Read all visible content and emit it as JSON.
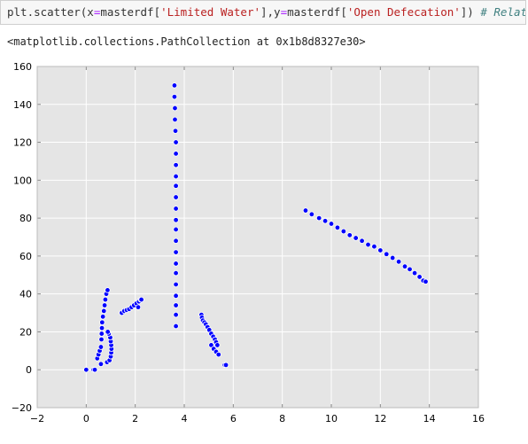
{
  "code_cell": {
    "part_1": "plt.scatter(x",
    "eq_1": "=",
    "part_2": "masterdf[",
    "str_1": "'Limited Water'",
    "part_3": "],y",
    "eq_2": "=",
    "part_4": "masterdf[",
    "str_2": "'Open Defecation'",
    "part_5": "]) ",
    "comment": "# Relation o"
  },
  "output": {
    "text": "<matplotlib.collections.PathCollection at 0x1b8d8327e30>"
  },
  "colors": {
    "plot_background": "#e5e5e5",
    "grid": "#ffffff",
    "marker_fill": "#0000ff",
    "marker_edge": "#ffffff"
  },
  "chart_data": {
    "type": "scatter",
    "title": "",
    "xlabel": "",
    "ylabel": "",
    "xlim": [
      -2,
      16
    ],
    "ylim": [
      -20,
      160
    ],
    "xticks": [
      -2,
      0,
      2,
      4,
      6,
      8,
      10,
      12,
      14,
      16
    ],
    "yticks": [
      -20,
      0,
      20,
      40,
      60,
      80,
      100,
      120,
      140,
      160
    ],
    "grid": true,
    "series": [
      {
        "points": [
          [
            0.0,
            0
          ],
          [
            0.3,
            0
          ],
          [
            0.35,
            0
          ],
          [
            0.45,
            6
          ],
          [
            0.5,
            8
          ],
          [
            0.55,
            10
          ],
          [
            0.6,
            12
          ],
          [
            0.62,
            16
          ],
          [
            0.63,
            19
          ],
          [
            0.64,
            22
          ],
          [
            0.65,
            25
          ],
          [
            0.68,
            28
          ],
          [
            0.72,
            31
          ],
          [
            0.75,
            34
          ],
          [
            0.78,
            37
          ],
          [
            0.82,
            40
          ],
          [
            0.87,
            42
          ],
          [
            0.6,
            3
          ],
          [
            0.85,
            4
          ],
          [
            0.95,
            5
          ],
          [
            1.0,
            7
          ],
          [
            1.02,
            9
          ],
          [
            1.03,
            11
          ],
          [
            1.02,
            13
          ],
          [
            1.0,
            15
          ],
          [
            0.98,
            17
          ],
          [
            0.92,
            19
          ],
          [
            0.88,
            20
          ],
          [
            1.45,
            30
          ],
          [
            1.55,
            31
          ],
          [
            1.65,
            31.5
          ],
          [
            1.75,
            32
          ],
          [
            1.85,
            33
          ],
          [
            1.95,
            34
          ],
          [
            2.05,
            35
          ],
          [
            2.12,
            33
          ],
          [
            2.15,
            36
          ],
          [
            2.22,
            37
          ],
          [
            2.25,
            37
          ],
          [
            3.6,
            150
          ],
          [
            3.6,
            144
          ],
          [
            3.62,
            138
          ],
          [
            3.62,
            132
          ],
          [
            3.64,
            126
          ],
          [
            3.66,
            120
          ],
          [
            3.66,
            114
          ],
          [
            3.66,
            108
          ],
          [
            3.66,
            102
          ],
          [
            3.66,
            97
          ],
          [
            3.66,
            91
          ],
          [
            3.66,
            85
          ],
          [
            3.66,
            79
          ],
          [
            3.66,
            74
          ],
          [
            3.66,
            68
          ],
          [
            3.66,
            62
          ],
          [
            3.66,
            56
          ],
          [
            3.66,
            51
          ],
          [
            3.66,
            45
          ],
          [
            3.66,
            39
          ],
          [
            3.66,
            34
          ],
          [
            3.66,
            29
          ],
          [
            3.66,
            23
          ],
          [
            4.7,
            29
          ],
          [
            4.72,
            27.5
          ],
          [
            4.76,
            26
          ],
          [
            4.82,
            25
          ],
          [
            4.88,
            24
          ],
          [
            4.95,
            22.5
          ],
          [
            5.02,
            21
          ],
          [
            5.1,
            19
          ],
          [
            5.18,
            17.5
          ],
          [
            5.25,
            16
          ],
          [
            5.3,
            14.5
          ],
          [
            5.35,
            13
          ],
          [
            5.1,
            13
          ],
          [
            5.2,
            11
          ],
          [
            5.3,
            9.5
          ],
          [
            5.4,
            8
          ],
          [
            5.65,
            2.5
          ],
          [
            5.7,
            2.5
          ],
          [
            8.95,
            84
          ],
          [
            9.2,
            82
          ],
          [
            9.5,
            80
          ],
          [
            9.75,
            78.5
          ],
          [
            10.0,
            77
          ],
          [
            10.25,
            75
          ],
          [
            10.5,
            73
          ],
          [
            10.75,
            71
          ],
          [
            11.0,
            69.5
          ],
          [
            11.25,
            68
          ],
          [
            11.5,
            66
          ],
          [
            11.75,
            65
          ],
          [
            12.0,
            63
          ],
          [
            12.25,
            61
          ],
          [
            12.5,
            59
          ],
          [
            12.75,
            57
          ],
          [
            13.0,
            54.5
          ],
          [
            13.2,
            53
          ],
          [
            13.4,
            51
          ],
          [
            13.6,
            49
          ],
          [
            13.75,
            47
          ],
          [
            13.85,
            46.5
          ]
        ]
      }
    ]
  }
}
